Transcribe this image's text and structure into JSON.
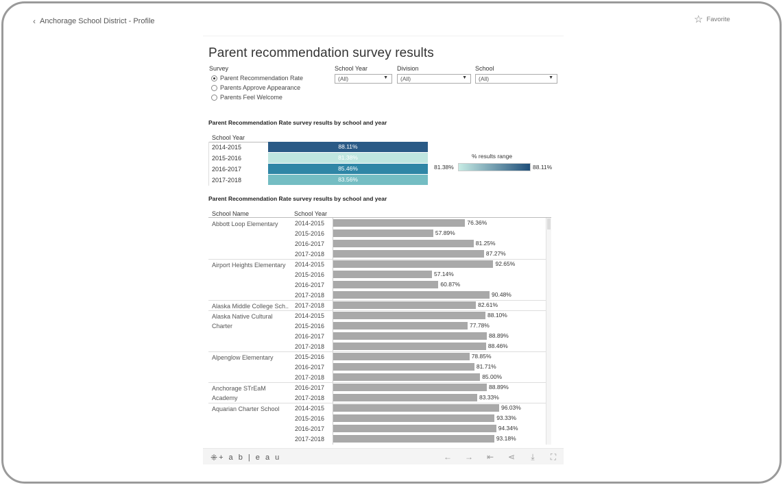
{
  "page": {
    "back_label": "Anchorage School District - Profile",
    "favorite_label": "Favorite"
  },
  "viz": {
    "title": "Parent recommendation survey results",
    "filters": {
      "survey_label": "Survey",
      "options": [
        {
          "label": "Parent Recommendation Rate",
          "selected": true
        },
        {
          "label": "Parents Approve Appearance",
          "selected": false
        },
        {
          "label": "Parents Feel Welcome",
          "selected": false
        }
      ],
      "school_year": {
        "label": "School Year",
        "value": "(All)"
      },
      "division": {
        "label": "Division",
        "value": "(All)"
      },
      "school": {
        "label": "School",
        "value": "(All)"
      }
    },
    "heatmap_title": "Parent Recommendation Rate survey results by school and year",
    "heatmap_col": "School Year",
    "legend": {
      "title": "% results range",
      "min": "81.38%",
      "max": "88.11%",
      "color_low": "#c6ebe4",
      "color_high": "#1f4f7a"
    },
    "barchart_title": "Parent Recommendation Rate survey results by school and year",
    "bar_col_school": "School Name",
    "bar_col_year": "School Year",
    "toolbar": {
      "logo": "+ a b | e a u"
    }
  },
  "chart_data": [
    {
      "type": "heatmap",
      "title": "Parent Recommendation Rate survey results by school and year",
      "rows": [
        "2014-2015",
        "2015-2016",
        "2016-2017",
        "2017-2018"
      ],
      "values": [
        88.11,
        81.38,
        85.46,
        83.56
      ],
      "labels": [
        "88.11%",
        "81.38%",
        "85.46%",
        "83.56%"
      ],
      "colors": [
        "#2a5a86",
        "#bfe6e0",
        "#2f86a6",
        "#74bdc3"
      ]
    },
    {
      "type": "bar",
      "title": "Parent Recommendation Rate survey results by school and year",
      "xlim": [
        0,
        100
      ],
      "schools": [
        {
          "name": "Abbott Loop Elementary",
          "rows": [
            {
              "year": "2014-2015",
              "value": 76.36,
              "label": "76.36%"
            },
            {
              "year": "2015-2016",
              "value": 57.89,
              "label": "57.89%"
            },
            {
              "year": "2016-2017",
              "value": 81.25,
              "label": "81.25%"
            },
            {
              "year": "2017-2018",
              "value": 87.27,
              "label": "87.27%"
            }
          ]
        },
        {
          "name": "Airport Heights Elementary",
          "rows": [
            {
              "year": "2014-2015",
              "value": 92.65,
              "label": "92.65%"
            },
            {
              "year": "2015-2016",
              "value": 57.14,
              "label": "57.14%"
            },
            {
              "year": "2016-2017",
              "value": 60.87,
              "label": "60.87%"
            },
            {
              "year": "2017-2018",
              "value": 90.48,
              "label": "90.48%"
            }
          ]
        },
        {
          "name": "Alaska Middle College Sch..",
          "rows": [
            {
              "year": "2017-2018",
              "value": 82.61,
              "label": "82.61%"
            }
          ]
        },
        {
          "name": "Alaska Native Cultural Charter",
          "rows": [
            {
              "year": "2014-2015",
              "value": 88.1,
              "label": "88.10%"
            },
            {
              "year": "2015-2016",
              "value": 77.78,
              "label": "77.78%"
            },
            {
              "year": "2016-2017",
              "value": 88.89,
              "label": "88.89%"
            },
            {
              "year": "2017-2018",
              "value": 88.46,
              "label": "88.46%"
            }
          ]
        },
        {
          "name": "Alpenglow Elementary",
          "rows": [
            {
              "year": "2015-2016",
              "value": 78.85,
              "label": "78.85%"
            },
            {
              "year": "2016-2017",
              "value": 81.71,
              "label": "81.71%"
            },
            {
              "year": "2017-2018",
              "value": 85.0,
              "label": "85.00%"
            }
          ]
        },
        {
          "name": "Anchorage STrEaM Academy",
          "rows": [
            {
              "year": "2016-2017",
              "value": 88.89,
              "label": "88.89%"
            },
            {
              "year": "2017-2018",
              "value": 83.33,
              "label": "83.33%"
            }
          ]
        },
        {
          "name": "Aquarian Charter School",
          "rows": [
            {
              "year": "2014-2015",
              "value": 96.03,
              "label": "96.03%"
            },
            {
              "year": "2015-2016",
              "value": 93.33,
              "label": "93.33%"
            },
            {
              "year": "2016-2017",
              "value": 94.34,
              "label": "94.34%"
            },
            {
              "year": "2017-2018",
              "value": 93.18,
              "label": "93.18%"
            }
          ]
        }
      ]
    }
  ]
}
